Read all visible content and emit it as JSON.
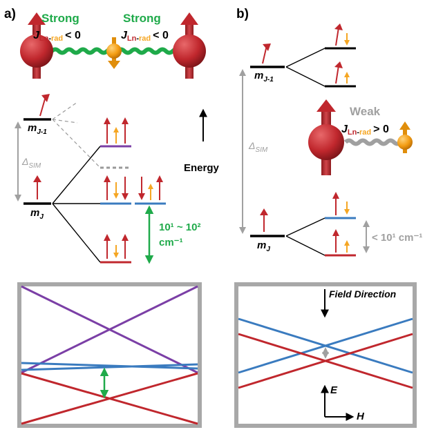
{
  "panel_a": {
    "label": "a)",
    "strong_left": "Strong",
    "strong_right": "Strong",
    "coupling_j": "J",
    "coupling_ln": "Ln",
    "coupling_dash": "-",
    "coupling_rad": "rad",
    "coupling_sign": "< 0",
    "level_upper_m": "m",
    "level_upper_sub": "J-1",
    "level_lower_m": "m",
    "level_lower_sub": "J",
    "delta": "Δ",
    "delta_sub": "SIM",
    "energy_axis": "Energy",
    "gap_text": "10¹ ~ 10²",
    "gap_unit": "cm⁻¹"
  },
  "panel_b": {
    "label": "b)",
    "weak": "Weak",
    "coupling_j": "J",
    "coupling_ln": "Ln",
    "coupling_dash": "-",
    "coupling_rad": "rad",
    "coupling_sign": "> 0",
    "level_upper_m": "m",
    "level_upper_sub": "J-1",
    "level_lower_m": "m",
    "level_lower_sub": "J",
    "delta": "Δ",
    "delta_sub": "SIM",
    "gap_text": "< 10¹ cm⁻¹"
  },
  "panel_d": {
    "field_direction": "Field Direction",
    "axis_e": "E",
    "axis_h": "H"
  },
  "colors": {
    "red": "#c0272d",
    "dark_red": "#a52127",
    "orange": "#f5a623",
    "green": "#1faa4a",
    "purple": "#7b3fa6",
    "blue": "#3a7bbf",
    "gray": "#a0a0a0"
  }
}
